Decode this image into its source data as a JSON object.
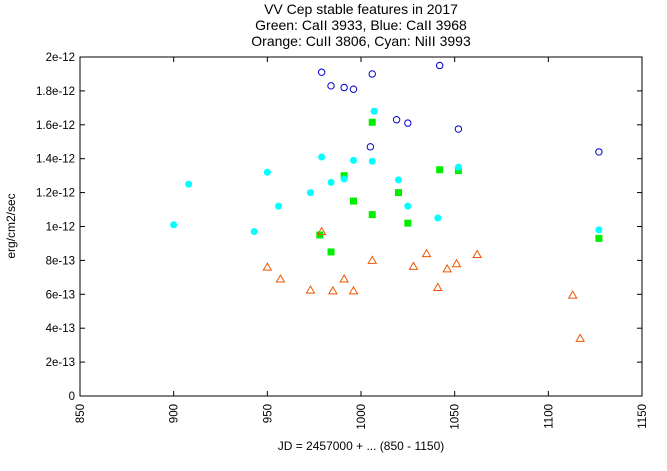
{
  "chart_data": {
    "type": "scatter",
    "title_lines": [
      "VV Cep stable features in 2017",
      "Green: CaII 3933, Blue: CaII 3968",
      "Orange: CuII 3806, Cyan: NiII 3993"
    ],
    "xlabel": "JD = 2457000 + ... (850 - 1150)",
    "ylabel": "erg/cm2/sec",
    "xlim": [
      850,
      1150
    ],
    "ylim": [
      0,
      2e-12
    ],
    "x_ticks": [
      850,
      900,
      950,
      1000,
      1050,
      1100,
      1150
    ],
    "x_tick_labels": [
      "850",
      "900",
      "950",
      "1000",
      "1050",
      "1100",
      "1150"
    ],
    "y_ticks": [
      0,
      2e-13,
      4e-13,
      6e-13,
      8e-13,
      1e-12,
      1.2e-12,
      1.4e-12,
      1.6e-12,
      1.8e-12,
      2e-12
    ],
    "y_tick_labels": [
      "0",
      "2e-13",
      "4e-13",
      "6e-13",
      "8e-13",
      "1e-12",
      "1.2e-12",
      "1.4e-12",
      "1.6e-12",
      "1.8e-12",
      "2e-12"
    ],
    "grid": false,
    "series": [
      {
        "marker": "filled-square",
        "color": "#00ee00",
        "points": [
          [
            978,
            9.5e-13
          ],
          [
            984,
            8.5e-13
          ],
          [
            991,
            1.3e-12
          ],
          [
            996,
            1.15e-12
          ],
          [
            1006,
            1.07e-12
          ],
          [
            1006,
            1.615e-12
          ],
          [
            1020,
            1.2e-12
          ],
          [
            1025,
            1.02e-12
          ],
          [
            1042,
            1.335e-12
          ],
          [
            1052,
            1.33e-12
          ],
          [
            1127,
            9.3e-13
          ]
        ]
      },
      {
        "marker": "open-circle",
        "color": "#0000cc",
        "points": [
          [
            979,
            1.91e-12
          ],
          [
            984,
            1.83e-12
          ],
          [
            991,
            1.82e-12
          ],
          [
            996,
            1.81e-12
          ],
          [
            1006,
            1.9e-12
          ],
          [
            1005,
            1.47e-12
          ],
          [
            1019,
            1.63e-12
          ],
          [
            1025,
            1.61e-12
          ],
          [
            1042,
            1.95e-12
          ],
          [
            1052,
            1.575e-12
          ],
          [
            1127,
            1.44e-12
          ]
        ]
      },
      {
        "marker": "open-triangle",
        "color": "#ee5500",
        "points": [
          [
            950,
            7.6e-13
          ],
          [
            957,
            6.9e-13
          ],
          [
            973,
            6.25e-13
          ],
          [
            979,
            9.7e-13
          ],
          [
            985,
            6.2e-13
          ],
          [
            991,
            6.9e-13
          ],
          [
            996,
            6.2e-13
          ],
          [
            1006,
            8e-13
          ],
          [
            1028,
            7.65e-13
          ],
          [
            1035,
            8.4e-13
          ],
          [
            1041,
            6.4e-13
          ],
          [
            1046,
            7.5e-13
          ],
          [
            1051,
            7.8e-13
          ],
          [
            1062,
            8.35e-13
          ],
          [
            1113,
            5.95e-13
          ],
          [
            1117,
            3.4e-13
          ]
        ]
      },
      {
        "marker": "filled-circle",
        "color": "#00ffff",
        "points": [
          [
            900,
            1.01e-12
          ],
          [
            908,
            1.25e-12
          ],
          [
            943,
            9.7e-13
          ],
          [
            950,
            1.32e-12
          ],
          [
            956,
            1.12e-12
          ],
          [
            973,
            1.2e-12
          ],
          [
            979,
            1.41e-12
          ],
          [
            984,
            1.26e-12
          ],
          [
            991,
            1.28e-12
          ],
          [
            996,
            1.39e-12
          ],
          [
            1006,
            1.385e-12
          ],
          [
            1007,
            1.68e-12
          ],
          [
            1020,
            1.275e-12
          ],
          [
            1025,
            1.12e-12
          ],
          [
            1041,
            1.05e-12
          ],
          [
            1052,
            1.35e-12
          ],
          [
            1127,
            9.8e-13
          ]
        ]
      }
    ]
  }
}
